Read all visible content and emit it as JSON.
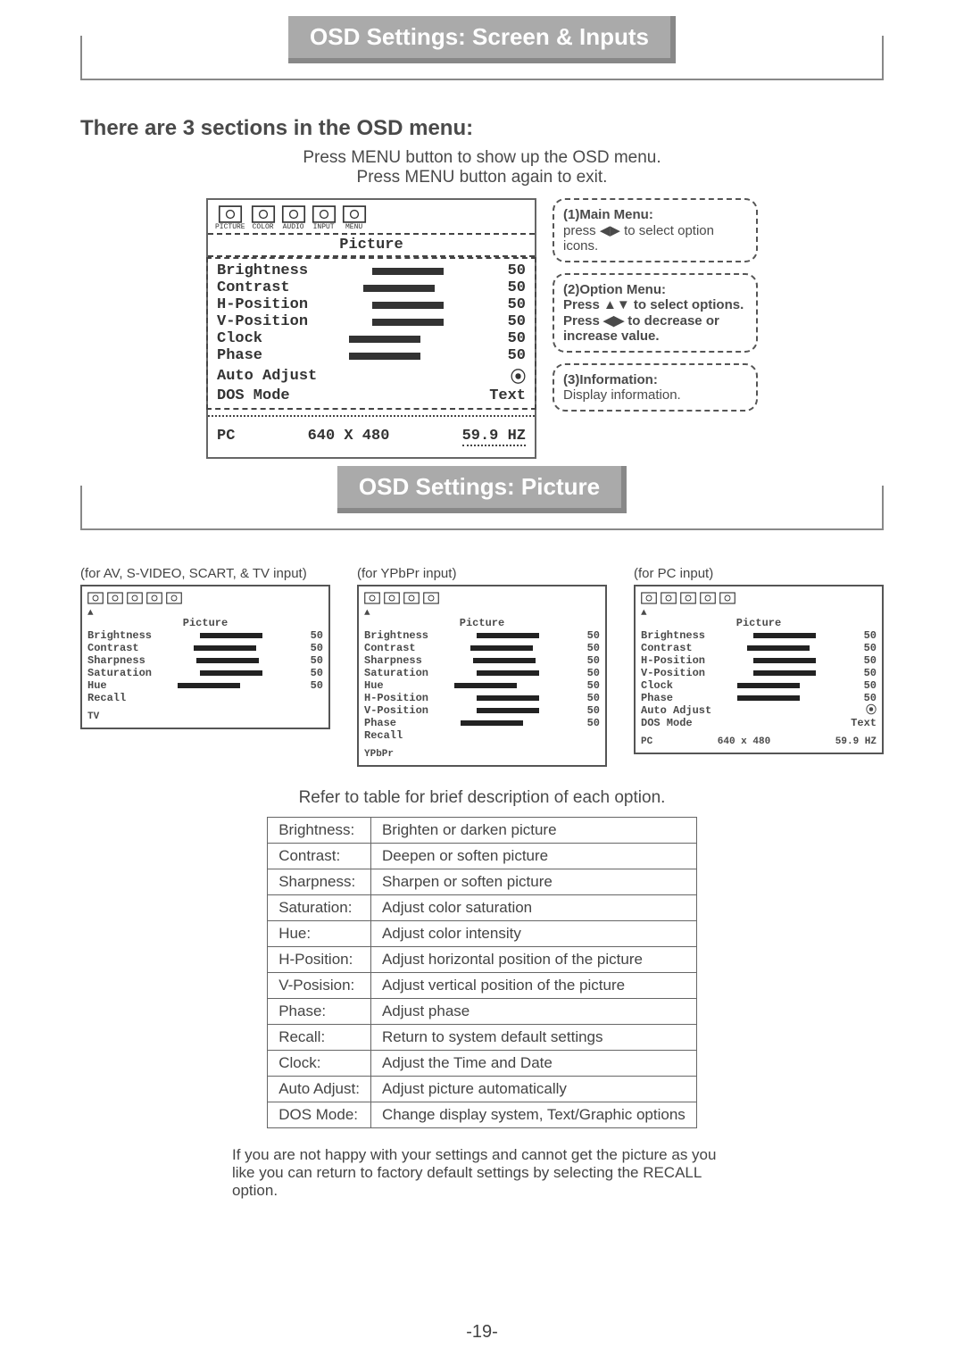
{
  "title1": "OSD Settings: Screen & Inputs",
  "heading": "There are 3 sections in the OSD menu:",
  "intro1": "Press MENU button to show up the OSD menu.",
  "intro2": "Press MENU button again to exit.",
  "osd": {
    "icon_labels": [
      "PICTURE",
      "COLOR",
      "AUDIO",
      "INPUT",
      "MENU"
    ],
    "section_label": "Picture",
    "options": [
      {
        "name": "Brightness",
        "val": "50",
        "bar": true
      },
      {
        "name": "Contrast",
        "val": "50",
        "bar": true
      },
      {
        "name": "H-Position",
        "val": "50",
        "bar": true
      },
      {
        "name": "V-Position",
        "val": "50",
        "bar": true
      },
      {
        "name": "Clock",
        "val": "50",
        "bar": true
      },
      {
        "name": "Phase",
        "val": "50",
        "bar": true
      },
      {
        "name": "Auto Adjust",
        "val": "⦿",
        "bar": false
      },
      {
        "name": "DOS Mode",
        "val": "Text",
        "bar": false
      }
    ],
    "info": {
      "src": "PC",
      "res": "640 X 480",
      "hz": "59.9 HZ"
    }
  },
  "callouts": {
    "c1": {
      "title": "(1)Main Menu:",
      "body": "press ◀▶ to select option icons."
    },
    "c2": {
      "title": "(2)Option Menu:",
      "body": "Press ▲▼ to select options. Press ◀▶ to decrease or increase value."
    },
    "c3": {
      "title": "(3)Information:",
      "body": "Display information."
    }
  },
  "title2": "OSD Settings: Picture",
  "thumbs": [
    {
      "caption": "(for AV, S-VIDEO, SCART, & TV input)",
      "icons": [
        "PICTURE",
        "AUDIO",
        "INPUT",
        "TV",
        "MENU"
      ],
      "title": "Picture",
      "rows": [
        {
          "n": "Brightness",
          "v": "50",
          "b": true
        },
        {
          "n": "Contrast",
          "v": "50",
          "b": true
        },
        {
          "n": "Sharpness",
          "v": "50",
          "b": true
        },
        {
          "n": "Saturation",
          "v": "50",
          "b": true
        },
        {
          "n": "Hue",
          "v": "50",
          "b": true
        },
        {
          "n": "Recall",
          "v": "",
          "b": false
        }
      ],
      "footer": [
        "TV",
        "",
        ""
      ]
    },
    {
      "caption": "(for YPbPr input)",
      "icons": [
        "PICTURE",
        "AUDIO",
        "INPUT",
        "MENU"
      ],
      "title": "Picture",
      "rows": [
        {
          "n": "Brightness",
          "v": "50",
          "b": true
        },
        {
          "n": "Contrast",
          "v": "50",
          "b": true
        },
        {
          "n": "Sharpness",
          "v": "50",
          "b": true
        },
        {
          "n": "Saturation",
          "v": "50",
          "b": true
        },
        {
          "n": "Hue",
          "v": "50",
          "b": true
        },
        {
          "n": "H-Position",
          "v": "50",
          "b": true
        },
        {
          "n": "V-Position",
          "v": "50",
          "b": true
        },
        {
          "n": "Phase",
          "v": "50",
          "b": true
        },
        {
          "n": "Recall",
          "v": "",
          "b": false
        }
      ],
      "footer": [
        "YPbPr",
        "",
        ""
      ]
    },
    {
      "caption": "(for PC input)",
      "icons": [
        "PICTURE",
        "COLOR",
        "AUDIO",
        "INPUT",
        "MENU"
      ],
      "title": "Picture",
      "rows": [
        {
          "n": "Brightness",
          "v": "50",
          "b": true
        },
        {
          "n": "Contrast",
          "v": "50",
          "b": true
        },
        {
          "n": "H-Position",
          "v": "50",
          "b": true
        },
        {
          "n": "V-Position",
          "v": "50",
          "b": true
        },
        {
          "n": "Clock",
          "v": "50",
          "b": true
        },
        {
          "n": "Phase",
          "v": "50",
          "b": true
        },
        {
          "n": "Auto Adjust",
          "v": "⦿",
          "b": false
        },
        {
          "n": "DOS Mode",
          "v": "Text",
          "b": false
        }
      ],
      "footer": [
        "PC",
        "640 x 480",
        "59.9 HZ"
      ]
    }
  ],
  "table_intro": "Refer to table for brief description of each option.",
  "table": [
    [
      "Brightness:",
      "Brighten or darken picture"
    ],
    [
      "Contrast:",
      "Deepen or soften picture"
    ],
    [
      "Sharpness:",
      "Sharpen or soften picture"
    ],
    [
      "Saturation:",
      "Adjust color saturation"
    ],
    [
      "Hue:",
      "Adjust color intensity"
    ],
    [
      "H-Position:",
      "Adjust horizontal position of the picture"
    ],
    [
      "V-Posision:",
      "Adjust vertical position of the picture"
    ],
    [
      "Phase:",
      "Adjust phase"
    ],
    [
      "Recall:",
      "Return to system default settings"
    ],
    [
      "Clock:",
      "Adjust the Time and Date"
    ],
    [
      "Auto Adjust:",
      "Adjust picture automatically"
    ],
    [
      "DOS Mode:",
      "Change display system, Text/Graphic options"
    ]
  ],
  "footnote": "If you are not happy with your settings and cannot get the picture as you like you can return to factory default settings by selecting the RECALL option.",
  "page": "-19-"
}
